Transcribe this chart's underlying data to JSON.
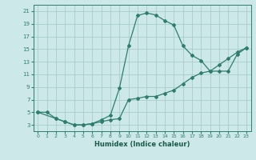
{
  "xlabel": "Humidex (Indice chaleur)",
  "bg_color": "#cce8e8",
  "grid_color": "#a8cccc",
  "line_color": "#2e7d6e",
  "xlim": [
    -0.5,
    23.5
  ],
  "ylim": [
    2,
    22
  ],
  "xticks": [
    0,
    1,
    2,
    3,
    4,
    5,
    6,
    7,
    8,
    9,
    10,
    11,
    12,
    13,
    14,
    15,
    16,
    17,
    18,
    19,
    20,
    21,
    22,
    23
  ],
  "yticks": [
    3,
    5,
    7,
    9,
    11,
    13,
    15,
    17,
    19,
    21
  ],
  "curve1_x": [
    0,
    1,
    2,
    3,
    4,
    5,
    6,
    7,
    8,
    9,
    10,
    11,
    12,
    13,
    14,
    15,
    16,
    17,
    18,
    19,
    20,
    21,
    22,
    23
  ],
  "curve1_y": [
    5,
    5,
    4,
    3.5,
    3,
    3,
    3.2,
    3.5,
    3.8,
    4,
    7,
    7.2,
    7.5,
    7.5,
    8,
    8.5,
    9.5,
    10.5,
    11.2,
    11.5,
    12.5,
    13.5,
    14.5,
    15.2
  ],
  "curve2_x": [
    0,
    2,
    3,
    4,
    5,
    6,
    7,
    8,
    9,
    10,
    11,
    12,
    13,
    14,
    15,
    16,
    17,
    18,
    19,
    20,
    21,
    22,
    23
  ],
  "curve2_y": [
    5,
    4,
    3.5,
    3,
    3,
    3.2,
    3.8,
    4.5,
    8.8,
    15.5,
    20.3,
    20.7,
    20.4,
    19.5,
    18.8,
    15.5,
    14,
    13.2,
    11.5,
    11.5,
    11.5,
    14.2,
    15.2
  ]
}
